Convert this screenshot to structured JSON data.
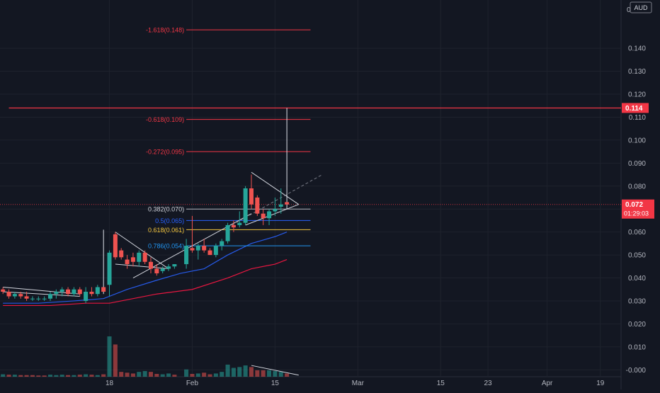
{
  "currency_button": "AUD",
  "top_tick_stub": "0",
  "chart_data": {
    "type": "candlestick",
    "price_axis": {
      "ylim": [
        -0.003,
        0.161
      ],
      "ticks": [
        "0.140",
        "0.130",
        "0.120",
        "0.110",
        "0.100",
        "0.090",
        "0.080",
        "0.070",
        "0.060",
        "0.050",
        "0.040",
        "0.030",
        "0.020",
        "0.010",
        "-0.000"
      ]
    },
    "time_axis": {
      "day_range": [
        -14.5,
        90.5
      ],
      "labels": [
        {
          "text": "18",
          "day": 4
        },
        {
          "text": "Feb",
          "day": 18
        },
        {
          "text": "15",
          "day": 32
        },
        {
          "text": "Mar",
          "day": 46
        },
        {
          "text": "15",
          "day": 60
        },
        {
          "text": "23",
          "day": 68
        },
        {
          "text": "Apr",
          "day": 78
        },
        {
          "text": "19",
          "day": 87
        }
      ]
    },
    "candles": [
      {
        "d": -14,
        "o": 0.035,
        "h": 0.036,
        "l": 0.033,
        "c": 0.034
      },
      {
        "d": -13,
        "o": 0.034,
        "h": 0.035,
        "l": 0.031,
        "c": 0.032
      },
      {
        "d": -12,
        "o": 0.032,
        "h": 0.034,
        "l": 0.031,
        "c": 0.033
      },
      {
        "d": -11,
        "o": 0.033,
        "h": 0.034,
        "l": 0.031,
        "c": 0.032
      },
      {
        "d": -10,
        "o": 0.032,
        "h": 0.034,
        "l": 0.03,
        "c": 0.031
      },
      {
        "d": -9,
        "o": 0.031,
        "h": 0.032,
        "l": 0.03,
        "c": 0.031
      },
      {
        "d": -8,
        "o": 0.031,
        "h": 0.032,
        "l": 0.03,
        "c": 0.031
      },
      {
        "d": -7,
        "o": 0.031,
        "h": 0.032,
        "l": 0.03,
        "c": 0.031
      },
      {
        "d": -6,
        "o": 0.031,
        "h": 0.034,
        "l": 0.03,
        "c": 0.033
      },
      {
        "d": -5,
        "o": 0.033,
        "h": 0.035,
        "l": 0.031,
        "c": 0.034
      },
      {
        "d": -4,
        "o": 0.034,
        "h": 0.036,
        "l": 0.032,
        "c": 0.035
      },
      {
        "d": -3,
        "o": 0.035,
        "h": 0.036,
        "l": 0.032,
        "c": 0.033
      },
      {
        "d": -2,
        "o": 0.033,
        "h": 0.036,
        "l": 0.032,
        "c": 0.035
      },
      {
        "d": -1,
        "o": 0.035,
        "h": 0.036,
        "l": 0.032,
        "c": 0.033
      },
      {
        "d": 0,
        "o": 0.03,
        "h": 0.036,
        "l": 0.029,
        "c": 0.034
      },
      {
        "d": 1,
        "o": 0.034,
        "h": 0.036,
        "l": 0.032,
        "c": 0.033
      },
      {
        "d": 2,
        "o": 0.033,
        "h": 0.037,
        "l": 0.032,
        "c": 0.036
      },
      {
        "d": 3,
        "o": 0.036,
        "h": 0.061,
        "l": 0.033,
        "c": 0.034
      },
      {
        "d": 4,
        "o": 0.037,
        "h": 0.052,
        "l": 0.032,
        "c": 0.051
      },
      {
        "d": 5,
        "o": 0.059,
        "h": 0.06,
        "l": 0.048,
        "c": 0.049
      },
      {
        "d": 6,
        "o": 0.052,
        "h": 0.053,
        "l": 0.048,
        "c": 0.049
      },
      {
        "d": 7,
        "o": 0.048,
        "h": 0.05,
        "l": 0.044,
        "c": 0.046
      },
      {
        "d": 8,
        "o": 0.049,
        "h": 0.051,
        "l": 0.045,
        "c": 0.047
      },
      {
        "d": 9,
        "o": 0.047,
        "h": 0.052,
        "l": 0.045,
        "c": 0.051
      },
      {
        "d": 10,
        "o": 0.051,
        "h": 0.052,
        "l": 0.046,
        "c": 0.047
      },
      {
        "d": 11,
        "o": 0.047,
        "h": 0.049,
        "l": 0.042,
        "c": 0.044
      },
      {
        "d": 12,
        "o": 0.044,
        "h": 0.046,
        "l": 0.041,
        "c": 0.042
      },
      {
        "d": 13,
        "o": 0.043,
        "h": 0.045,
        "l": 0.042,
        "c": 0.044
      },
      {
        "d": 14,
        "o": 0.044,
        "h": 0.046,
        "l": 0.043,
        "c": 0.045
      },
      {
        "d": 15,
        "o": 0.045,
        "h": 0.046,
        "l": 0.044,
        "c": 0.046
      },
      {
        "d": 17,
        "o": 0.046,
        "h": 0.057,
        "l": 0.044,
        "c": 0.054
      },
      {
        "d": 18,
        "o": 0.053,
        "h": 0.067,
        "l": 0.051,
        "c": 0.052
      },
      {
        "d": 19,
        "o": 0.052,
        "h": 0.055,
        "l": 0.048,
        "c": 0.054
      },
      {
        "d": 20,
        "o": 0.054,
        "h": 0.057,
        "l": 0.051,
        "c": 0.052
      },
      {
        "d": 21,
        "o": 0.052,
        "h": 0.053,
        "l": 0.05,
        "c": 0.05
      },
      {
        "d": 22,
        "o": 0.05,
        "h": 0.055,
        "l": 0.049,
        "c": 0.054
      },
      {
        "d": 23,
        "o": 0.054,
        "h": 0.057,
        "l": 0.052,
        "c": 0.056
      },
      {
        "d": 24,
        "o": 0.056,
        "h": 0.064,
        "l": 0.055,
        "c": 0.063
      },
      {
        "d": 25,
        "o": 0.063,
        "h": 0.065,
        "l": 0.06,
        "c": 0.062
      },
      {
        "d": 26,
        "o": 0.063,
        "h": 0.069,
        "l": 0.062,
        "c": 0.064
      },
      {
        "d": 27,
        "o": 0.064,
        "h": 0.08,
        "l": 0.063,
        "c": 0.079
      },
      {
        "d": 28,
        "o": 0.079,
        "h": 0.085,
        "l": 0.07,
        "c": 0.072
      },
      {
        "d": 29,
        "o": 0.075,
        "h": 0.076,
        "l": 0.067,
        "c": 0.068
      },
      {
        "d": 30,
        "o": 0.068,
        "h": 0.07,
        "l": 0.063,
        "c": 0.066
      },
      {
        "d": 31,
        "o": 0.066,
        "h": 0.07,
        "l": 0.063,
        "c": 0.069
      },
      {
        "d": 32,
        "o": 0.069,
        "h": 0.075,
        "l": 0.067,
        "c": 0.07
      },
      {
        "d": 33,
        "o": 0.071,
        "h": 0.079,
        "l": 0.068,
        "c": 0.072
      },
      {
        "d": 34,
        "o": 0.073,
        "h": 0.114,
        "l": 0.07,
        "c": 0.072
      }
    ],
    "volume": {
      "ylim": [
        0,
        72000000
      ],
      "bars": [
        {
          "d": -14,
          "v": 3000000,
          "up": true
        },
        {
          "d": -13,
          "v": 2500000,
          "up": false
        },
        {
          "d": -12,
          "v": 2500000,
          "up": true
        },
        {
          "d": -11,
          "v": 2000000,
          "up": false
        },
        {
          "d": -10,
          "v": 2000000,
          "up": false
        },
        {
          "d": -9,
          "v": 2000000,
          "up": false
        },
        {
          "d": -8,
          "v": 1500000,
          "up": false
        },
        {
          "d": -7,
          "v": 1500000,
          "up": false
        },
        {
          "d": -6,
          "v": 2500000,
          "up": true
        },
        {
          "d": -5,
          "v": 2000000,
          "up": true
        },
        {
          "d": -4,
          "v": 2500000,
          "up": true
        },
        {
          "d": -3,
          "v": 2000000,
          "up": false
        },
        {
          "d": -2,
          "v": 2000000,
          "up": true
        },
        {
          "d": -1,
          "v": 2500000,
          "up": false
        },
        {
          "d": 0,
          "v": 3000000,
          "up": true
        },
        {
          "d": 1,
          "v": 2500000,
          "up": false
        },
        {
          "d": 2,
          "v": 2000000,
          "up": true
        },
        {
          "d": 3,
          "v": 3000000,
          "up": false
        },
        {
          "d": 4,
          "v": 50000000,
          "up": true
        },
        {
          "d": 5,
          "v": 40000000,
          "up": false
        },
        {
          "d": 6,
          "v": 6000000,
          "up": false
        },
        {
          "d": 7,
          "v": 5000000,
          "up": false
        },
        {
          "d": 8,
          "v": 4000000,
          "up": false
        },
        {
          "d": 9,
          "v": 6000000,
          "up": true
        },
        {
          "d": 10,
          "v": 7000000,
          "up": true
        },
        {
          "d": 11,
          "v": 6000000,
          "up": false
        },
        {
          "d": 12,
          "v": 3500000,
          "up": false
        },
        {
          "d": 13,
          "v": 3000000,
          "up": true
        },
        {
          "d": 14,
          "v": 4000000,
          "up": true
        },
        {
          "d": 15,
          "v": 2500000,
          "up": false
        },
        {
          "d": 17,
          "v": 9000000,
          "up": true
        },
        {
          "d": 18,
          "v": 3500000,
          "up": false
        },
        {
          "d": 19,
          "v": 4000000,
          "up": true
        },
        {
          "d": 20,
          "v": 5000000,
          "up": false
        },
        {
          "d": 21,
          "v": 3000000,
          "up": false
        },
        {
          "d": 22,
          "v": 4000000,
          "up": true
        },
        {
          "d": 23,
          "v": 6000000,
          "up": true
        },
        {
          "d": 24,
          "v": 15000000,
          "up": true
        },
        {
          "d": 25,
          "v": 11000000,
          "up": true
        },
        {
          "d": 26,
          "v": 12000000,
          "up": true
        },
        {
          "d": 27,
          "v": 14000000,
          "up": true
        },
        {
          "d": 28,
          "v": 12000000,
          "up": false
        },
        {
          "d": 29,
          "v": 8000000,
          "up": false
        },
        {
          "d": 30,
          "v": 8000000,
          "up": false
        },
        {
          "d": 31,
          "v": 8000000,
          "up": true
        },
        {
          "d": 32,
          "v": 7000000,
          "up": true
        },
        {
          "d": 33,
          "v": 6000000,
          "up": true
        },
        {
          "d": 34,
          "v": 4000000,
          "up": false
        }
      ]
    },
    "moving_averages": [
      {
        "color": "#2962ff",
        "points": [
          [
            -14,
            0.029
          ],
          [
            -8,
            0.029
          ],
          [
            -2,
            0.03
          ],
          [
            3,
            0.031
          ],
          [
            7,
            0.035
          ],
          [
            12,
            0.039
          ],
          [
            16,
            0.042
          ],
          [
            20,
            0.044
          ],
          [
            24,
            0.05
          ],
          [
            28,
            0.055
          ],
          [
            32,
            0.058
          ],
          [
            34,
            0.06
          ]
        ]
      },
      {
        "color": "#ff1744",
        "points": [
          [
            -14,
            0.028
          ],
          [
            -6,
            0.028
          ],
          [
            0,
            0.029
          ],
          [
            4,
            0.029
          ],
          [
            6,
            0.03
          ],
          [
            12,
            0.033
          ],
          [
            18,
            0.035
          ],
          [
            24,
            0.04
          ],
          [
            28,
            0.044
          ],
          [
            32,
            0.046
          ],
          [
            34,
            0.048
          ]
        ]
      }
    ],
    "fib_levels": [
      {
        "label": "-1.618(0.148)",
        "value": 0.148,
        "color": "#f23645",
        "label_color": "#f23645"
      },
      {
        "label": "-0.618(0.109)",
        "value": 0.109,
        "color": "#f23645",
        "label_color": "#f23645"
      },
      {
        "label": "-0.272(0.095)",
        "value": 0.095,
        "color": "#f23645",
        "label_color": "#f23645"
      },
      {
        "label": "0.382(0.070)",
        "value": 0.07,
        "color": "#b2b5be",
        "label_color": "#d1d4dc"
      },
      {
        "label": "0.5(0.065)",
        "value": 0.065,
        "color": "#2962ff",
        "label_color": "#2962ff"
      },
      {
        "label": "0.618(0.061)",
        "value": 0.061,
        "color": "#f5c63d",
        "label_color": "#f5c63d"
      },
      {
        "label": "0.786(0.054)",
        "value": 0.054,
        "color": "#2196f3",
        "label_color": "#2196f3"
      }
    ],
    "fib_day_range": [
      17,
      38
    ],
    "horizontal_line": {
      "value": 0.114,
      "color": "#f23645",
      "day_range": [
        -13,
        90
      ]
    },
    "current_price": {
      "value": 0.072,
      "label": "0.072",
      "countdown": "01:29:03",
      "color": "#f23645"
    },
    "level_tag": {
      "value": 0.114,
      "label": "0.114",
      "color": "#f23645"
    },
    "trendlines": [
      {
        "type": "solid",
        "color": "#d1d4dc",
        "points": [
          [
            -14,
            0.036
          ],
          [
            -1,
            0.033
          ]
        ]
      },
      {
        "type": "solid",
        "color": "#d1d4dc",
        "points": [
          [
            -14,
            0.034
          ],
          [
            -1,
            0.032
          ]
        ]
      },
      {
        "type": "solid",
        "color": "#d1d4dc",
        "points": [
          [
            5,
            0.06
          ],
          [
            14,
            0.044
          ]
        ]
      },
      {
        "type": "solid",
        "color": "#d1d4dc",
        "points": [
          [
            5,
            0.046
          ],
          [
            14,
            0.044
          ]
        ]
      },
      {
        "type": "solid",
        "color": "#d1d4dc",
        "points": [
          [
            8,
            0.04
          ],
          [
            28,
            0.068
          ]
        ]
      },
      {
        "type": "solid",
        "color": "#d1d4dc",
        "points": [
          [
            28,
            0.086
          ],
          [
            36,
            0.072
          ]
        ]
      },
      {
        "type": "solid",
        "color": "#d1d4dc",
        "points": [
          [
            27,
            0.063
          ],
          [
            36,
            0.072
          ]
        ]
      },
      {
        "type": "dashed",
        "color": "#787b86",
        "points": [
          [
            24,
            0.062
          ],
          [
            40,
            0.085
          ]
        ]
      },
      {
        "type": "solid",
        "color": "#d1d4dc",
        "volume": true,
        "points": [
          [
            28,
            14000000
          ],
          [
            36,
            2000000
          ]
        ]
      }
    ]
  }
}
